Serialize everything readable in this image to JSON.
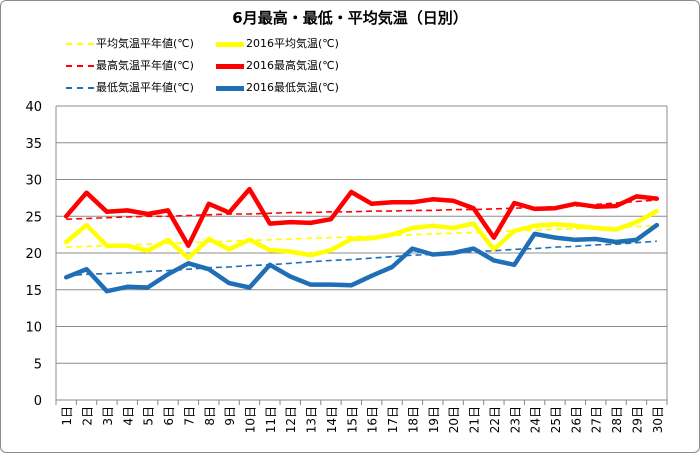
{
  "chart_data": {
    "type": "line",
    "title": "6月最高・最低・平均気温（日別）",
    "categories": [
      "1日",
      "2日",
      "3日",
      "4日",
      "5日",
      "6日",
      "7日",
      "8日",
      "9日",
      "10日",
      "11日",
      "12日",
      "13日",
      "14日",
      "15日",
      "16日",
      "17日",
      "18日",
      "19日",
      "20日",
      "21日",
      "22日",
      "23日",
      "24日",
      "25日",
      "26日",
      "27日",
      "28日",
      "29日",
      "30日"
    ],
    "ylim": [
      0,
      40
    ],
    "yticks": [
      "0",
      "5",
      "10",
      "15",
      "20",
      "25",
      "30",
      "35",
      "40"
    ],
    "grid": true,
    "legend_position": "top",
    "series": [
      {
        "name": "平均気温平年値(℃)",
        "color": "#ffff00",
        "dashed": true,
        "values": [
          20.8,
          20.9,
          21.0,
          21.1,
          21.2,
          21.3,
          21.4,
          21.5,
          21.6,
          21.7,
          21.8,
          21.9,
          22.0,
          22.1,
          22.2,
          22.3,
          22.4,
          22.5,
          22.6,
          22.7,
          22.8,
          22.9,
          23.0,
          23.1,
          23.2,
          23.3,
          23.4,
          23.5,
          23.6,
          23.7
        ]
      },
      {
        "name": "2016平均気温(℃)",
        "color": "#ffff00",
        "dashed": false,
        "values": [
          21.5,
          23.8,
          21.0,
          21.0,
          20.3,
          21.8,
          19.3,
          21.9,
          20.5,
          21.8,
          20.4,
          20.2,
          19.7,
          20.4,
          21.9,
          22.0,
          22.5,
          23.4,
          23.7,
          23.4,
          24.0,
          20.5,
          23.0,
          23.7,
          23.9,
          23.7,
          23.4,
          23.2,
          24.2,
          25.7
        ]
      },
      {
        "name": "最高気温平年値(℃)",
        "color": "#ff0000",
        "dashed": true,
        "values": [
          24.6,
          24.7,
          24.8,
          24.9,
          25.0,
          25.0,
          25.1,
          25.2,
          25.3,
          25.3,
          25.4,
          25.5,
          25.5,
          25.6,
          25.6,
          25.7,
          25.7,
          25.8,
          25.8,
          25.9,
          25.9,
          26.0,
          26.1,
          26.2,
          26.3,
          26.4,
          26.6,
          26.8,
          27.0,
          27.2
        ]
      },
      {
        "name": "2016最高気温(℃)",
        "color": "#ff0000",
        "dashed": false,
        "values": [
          25.0,
          28.2,
          25.6,
          25.8,
          25.3,
          25.8,
          21.0,
          26.7,
          25.5,
          28.7,
          24.0,
          24.2,
          24.1,
          24.6,
          28.3,
          26.7,
          26.9,
          26.9,
          27.3,
          27.1,
          26.1,
          22.1,
          26.8,
          26.0,
          26.1,
          26.7,
          26.3,
          26.4,
          27.7,
          27.4
        ]
      },
      {
        "name": "最低気温平年値(℃)",
        "color": "#1f6eb6",
        "dashed": true,
        "values": [
          16.9,
          17.1,
          17.2,
          17.3,
          17.5,
          17.6,
          17.8,
          18.0,
          18.1,
          18.3,
          18.4,
          18.6,
          18.8,
          19.0,
          19.1,
          19.3,
          19.5,
          19.7,
          19.8,
          20.0,
          20.2,
          20.3,
          20.5,
          20.6,
          20.8,
          20.9,
          21.1,
          21.2,
          21.4,
          21.6
        ]
      },
      {
        "name": "2016最低気温(℃)",
        "color": "#1f6eb6",
        "dashed": false,
        "values": [
          16.7,
          17.8,
          14.8,
          15.4,
          15.3,
          17.1,
          18.6,
          17.8,
          15.9,
          15.3,
          18.4,
          16.8,
          15.7,
          15.7,
          15.6,
          16.9,
          18.1,
          20.6,
          19.8,
          20.0,
          20.6,
          19.0,
          18.4,
          22.6,
          22.1,
          21.8,
          21.9,
          21.5,
          21.8,
          23.8
        ]
      }
    ]
  }
}
